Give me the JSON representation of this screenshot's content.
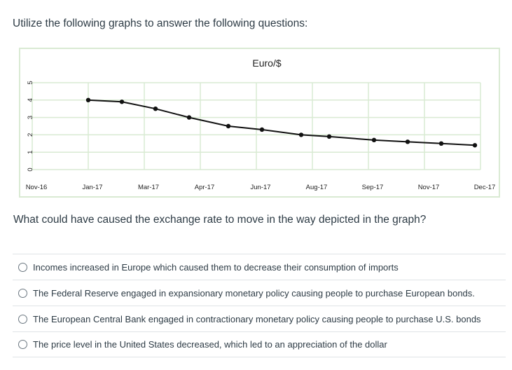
{
  "instructions": "Utilize the following graphs to answer the following questions:",
  "question": "What could have caused the exchange rate to move in the way depicted in the graph?",
  "answers": [
    "Incomes increased in Europe which caused them to decrease their consumption of imports",
    "The Federal Reserve engaged in expansionary monetary policy causing people to purchase European bonds.",
    "The European Central Bank engaged in contractionary monetary policy causing people to purchase U.S. bonds",
    "The price level in the United States decreased, which led to an appreciation of the dollar"
  ],
  "colors": {
    "grid": "#d9ead3",
    "line": "#111111",
    "text": "#2d3b45"
  },
  "chart_data": {
    "type": "line",
    "title": "Euro/$",
    "xlabel": "",
    "ylabel": "",
    "x_tick_labels": [
      "Nov-16",
      "Jan-17",
      "Mar-17",
      "Apr-17",
      "Jun-17",
      "Aug-17",
      "Sep-17",
      "Nov-17",
      "Dec-17"
    ],
    "y_tick_labels": [
      "0",
      "1",
      "2",
      "3",
      "4",
      "5"
    ],
    "ylim": [
      0,
      5
    ],
    "grid": true,
    "legend": "none",
    "series": [
      {
        "x": [
          1,
          1.6,
          2.2,
          2.8,
          3.5,
          4.1,
          4.8,
          5.3,
          6.1,
          6.7,
          7.3,
          7.9
        ],
        "values": [
          4.0,
          3.9,
          3.5,
          3.0,
          2.5,
          2.3,
          2.0,
          1.9,
          1.7,
          1.6,
          1.5,
          1.4
        ]
      }
    ]
  }
}
